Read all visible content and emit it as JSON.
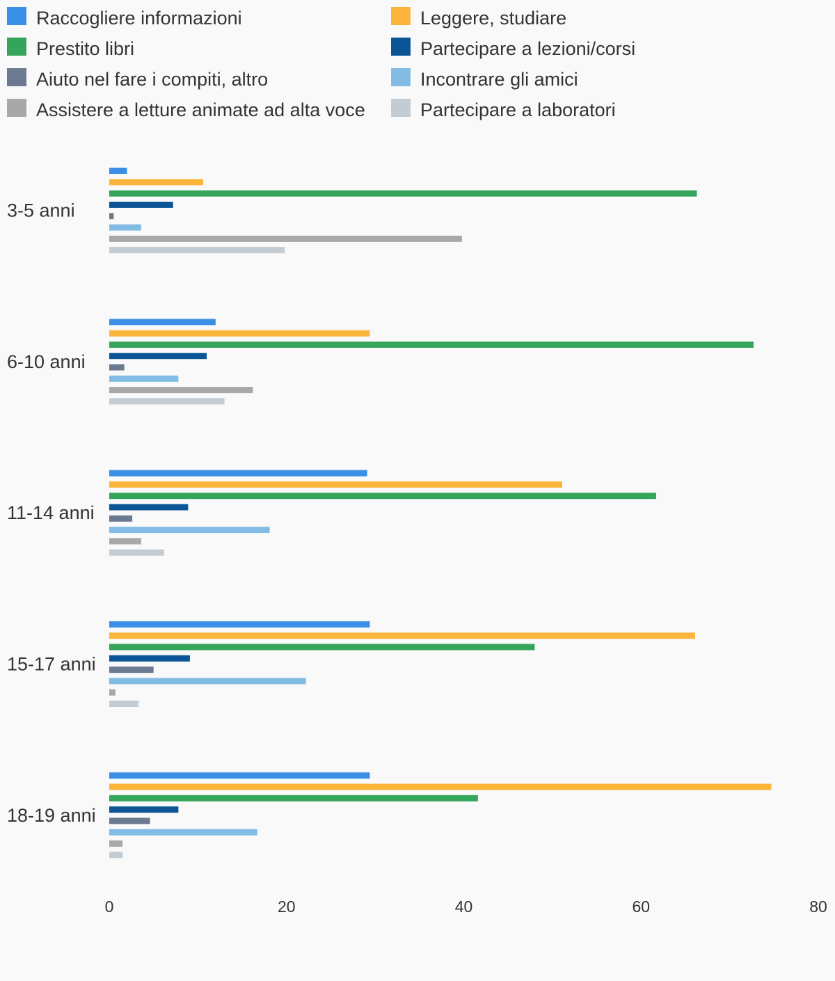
{
  "chart_data": {
    "type": "bar",
    "orientation": "horizontal",
    "categories": [
      "3-5 anni",
      "6-10 anni",
      "11-14 anni",
      "15-17 anni",
      "18-19 anni"
    ],
    "xlim": [
      0,
      80
    ],
    "xticks": [
      0,
      20,
      40,
      60,
      80
    ],
    "grid": false,
    "legend_position": "top",
    "series": [
      {
        "name": "Raccogliere informazioni",
        "color": "#3a8fe6",
        "values": [
          2.0,
          12.0,
          29.1,
          29.4,
          29.4
        ]
      },
      {
        "name": "Leggere, studiare",
        "color": "#fbb53b",
        "values": [
          10.6,
          29.4,
          51.1,
          66.1,
          74.7
        ]
      },
      {
        "name": "Prestito libri",
        "color": "#36a55c",
        "values": [
          66.3,
          72.7,
          61.7,
          48.0,
          41.6
        ]
      },
      {
        "name": "Partecipare a lezioni/corsi",
        "color": "#0b5596",
        "values": [
          7.2,
          11.0,
          8.9,
          9.1,
          7.8
        ]
      },
      {
        "name": "Aiuto nel fare i compiti, altro",
        "color": "#6b7a90",
        "values": [
          0.5,
          1.7,
          2.6,
          5.0,
          4.6
        ]
      },
      {
        "name": "Incontrare gli amici",
        "color": "#82bce4",
        "values": [
          3.6,
          7.8,
          18.1,
          22.2,
          16.7
        ]
      },
      {
        "name": "Assistere a letture animate ad alta voce",
        "color": "#a8a8a8",
        "values": [
          39.8,
          16.2,
          3.6,
          0.7,
          1.5
        ]
      },
      {
        "name": "Partecipare a laboratori",
        "color": "#c2ccd2",
        "values": [
          19.8,
          13.0,
          6.2,
          3.3,
          1.5
        ]
      }
    ]
  }
}
